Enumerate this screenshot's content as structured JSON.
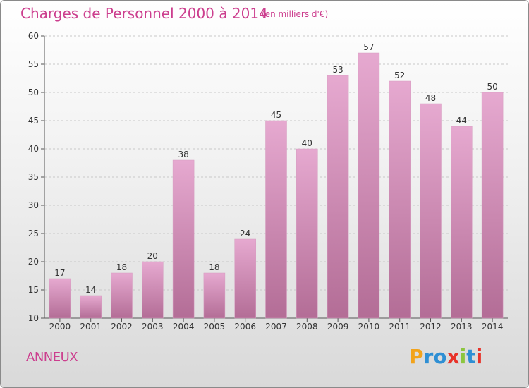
{
  "header": {
    "title": "Charges de Personnel 2000 à 2014",
    "unit": "(en milliers d'€)"
  },
  "footer": {
    "commune": "ANNEUX",
    "logo_letters": [
      "P",
      "r",
      "o",
      "x",
      "i",
      "t",
      "i"
    ],
    "logo_colors": [
      "#f2a31b",
      "#2e8fd4",
      "#2e8fd4",
      "#e8332a",
      "#8cc63f",
      "#2e8fd4",
      "#e8332a"
    ]
  },
  "colors": {
    "bar_top": "#e6a9d0",
    "bar_bottom": "#b36d96",
    "text_accent": "#cc3e8e"
  },
  "chart_data": {
    "type": "bar",
    "title": "Charges de Personnel 2000 à 2014",
    "subtitle": "(en milliers d'€)",
    "xlabel": "",
    "ylabel": "",
    "categories": [
      "2000",
      "2001",
      "2002",
      "2003",
      "2004",
      "2005",
      "2006",
      "2007",
      "2008",
      "2009",
      "2010",
      "2011",
      "2012",
      "2013",
      "2014"
    ],
    "values": [
      17,
      14,
      18,
      20,
      38,
      18,
      24,
      45,
      40,
      53,
      57,
      52,
      48,
      44,
      50
    ],
    "ylim": [
      10,
      60
    ],
    "yticks": [
      10,
      15,
      20,
      25,
      30,
      35,
      40,
      45,
      50,
      55,
      60
    ],
    "grid": true
  }
}
